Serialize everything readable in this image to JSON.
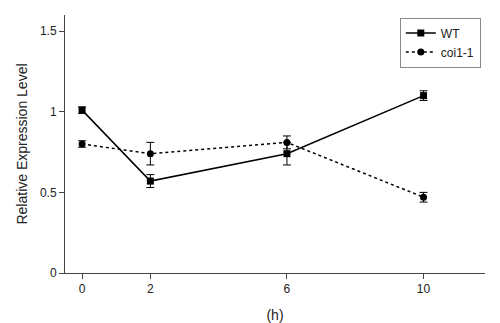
{
  "chart_data": {
    "type": "line",
    "x": [
      0,
      2,
      6,
      10
    ],
    "series": [
      {
        "name": "WT",
        "color": "#000000",
        "marker": "square",
        "line_style": "solid",
        "values": [
          1.01,
          0.57,
          0.74,
          1.1
        ],
        "error": [
          0.02,
          0.04,
          0.07,
          0.03
        ]
      },
      {
        "name": "coi1-1",
        "color": "#000000",
        "marker": "circle",
        "line_style": "dotted",
        "values": [
          0.8,
          0.74,
          0.81,
          0.47
        ],
        "error": [
          0.02,
          0.07,
          0.04,
          0.03
        ]
      }
    ],
    "xlabel": "(h)",
    "ylabel": "Relative Expression Level",
    "xlim": [
      -0.5,
      11.8
    ],
    "xticks": [
      0,
      2,
      6,
      10
    ],
    "ylim": [
      0,
      1.6
    ],
    "yticks": [
      0,
      0.5,
      1,
      1.5
    ],
    "grid": false,
    "legend": "upper right"
  }
}
